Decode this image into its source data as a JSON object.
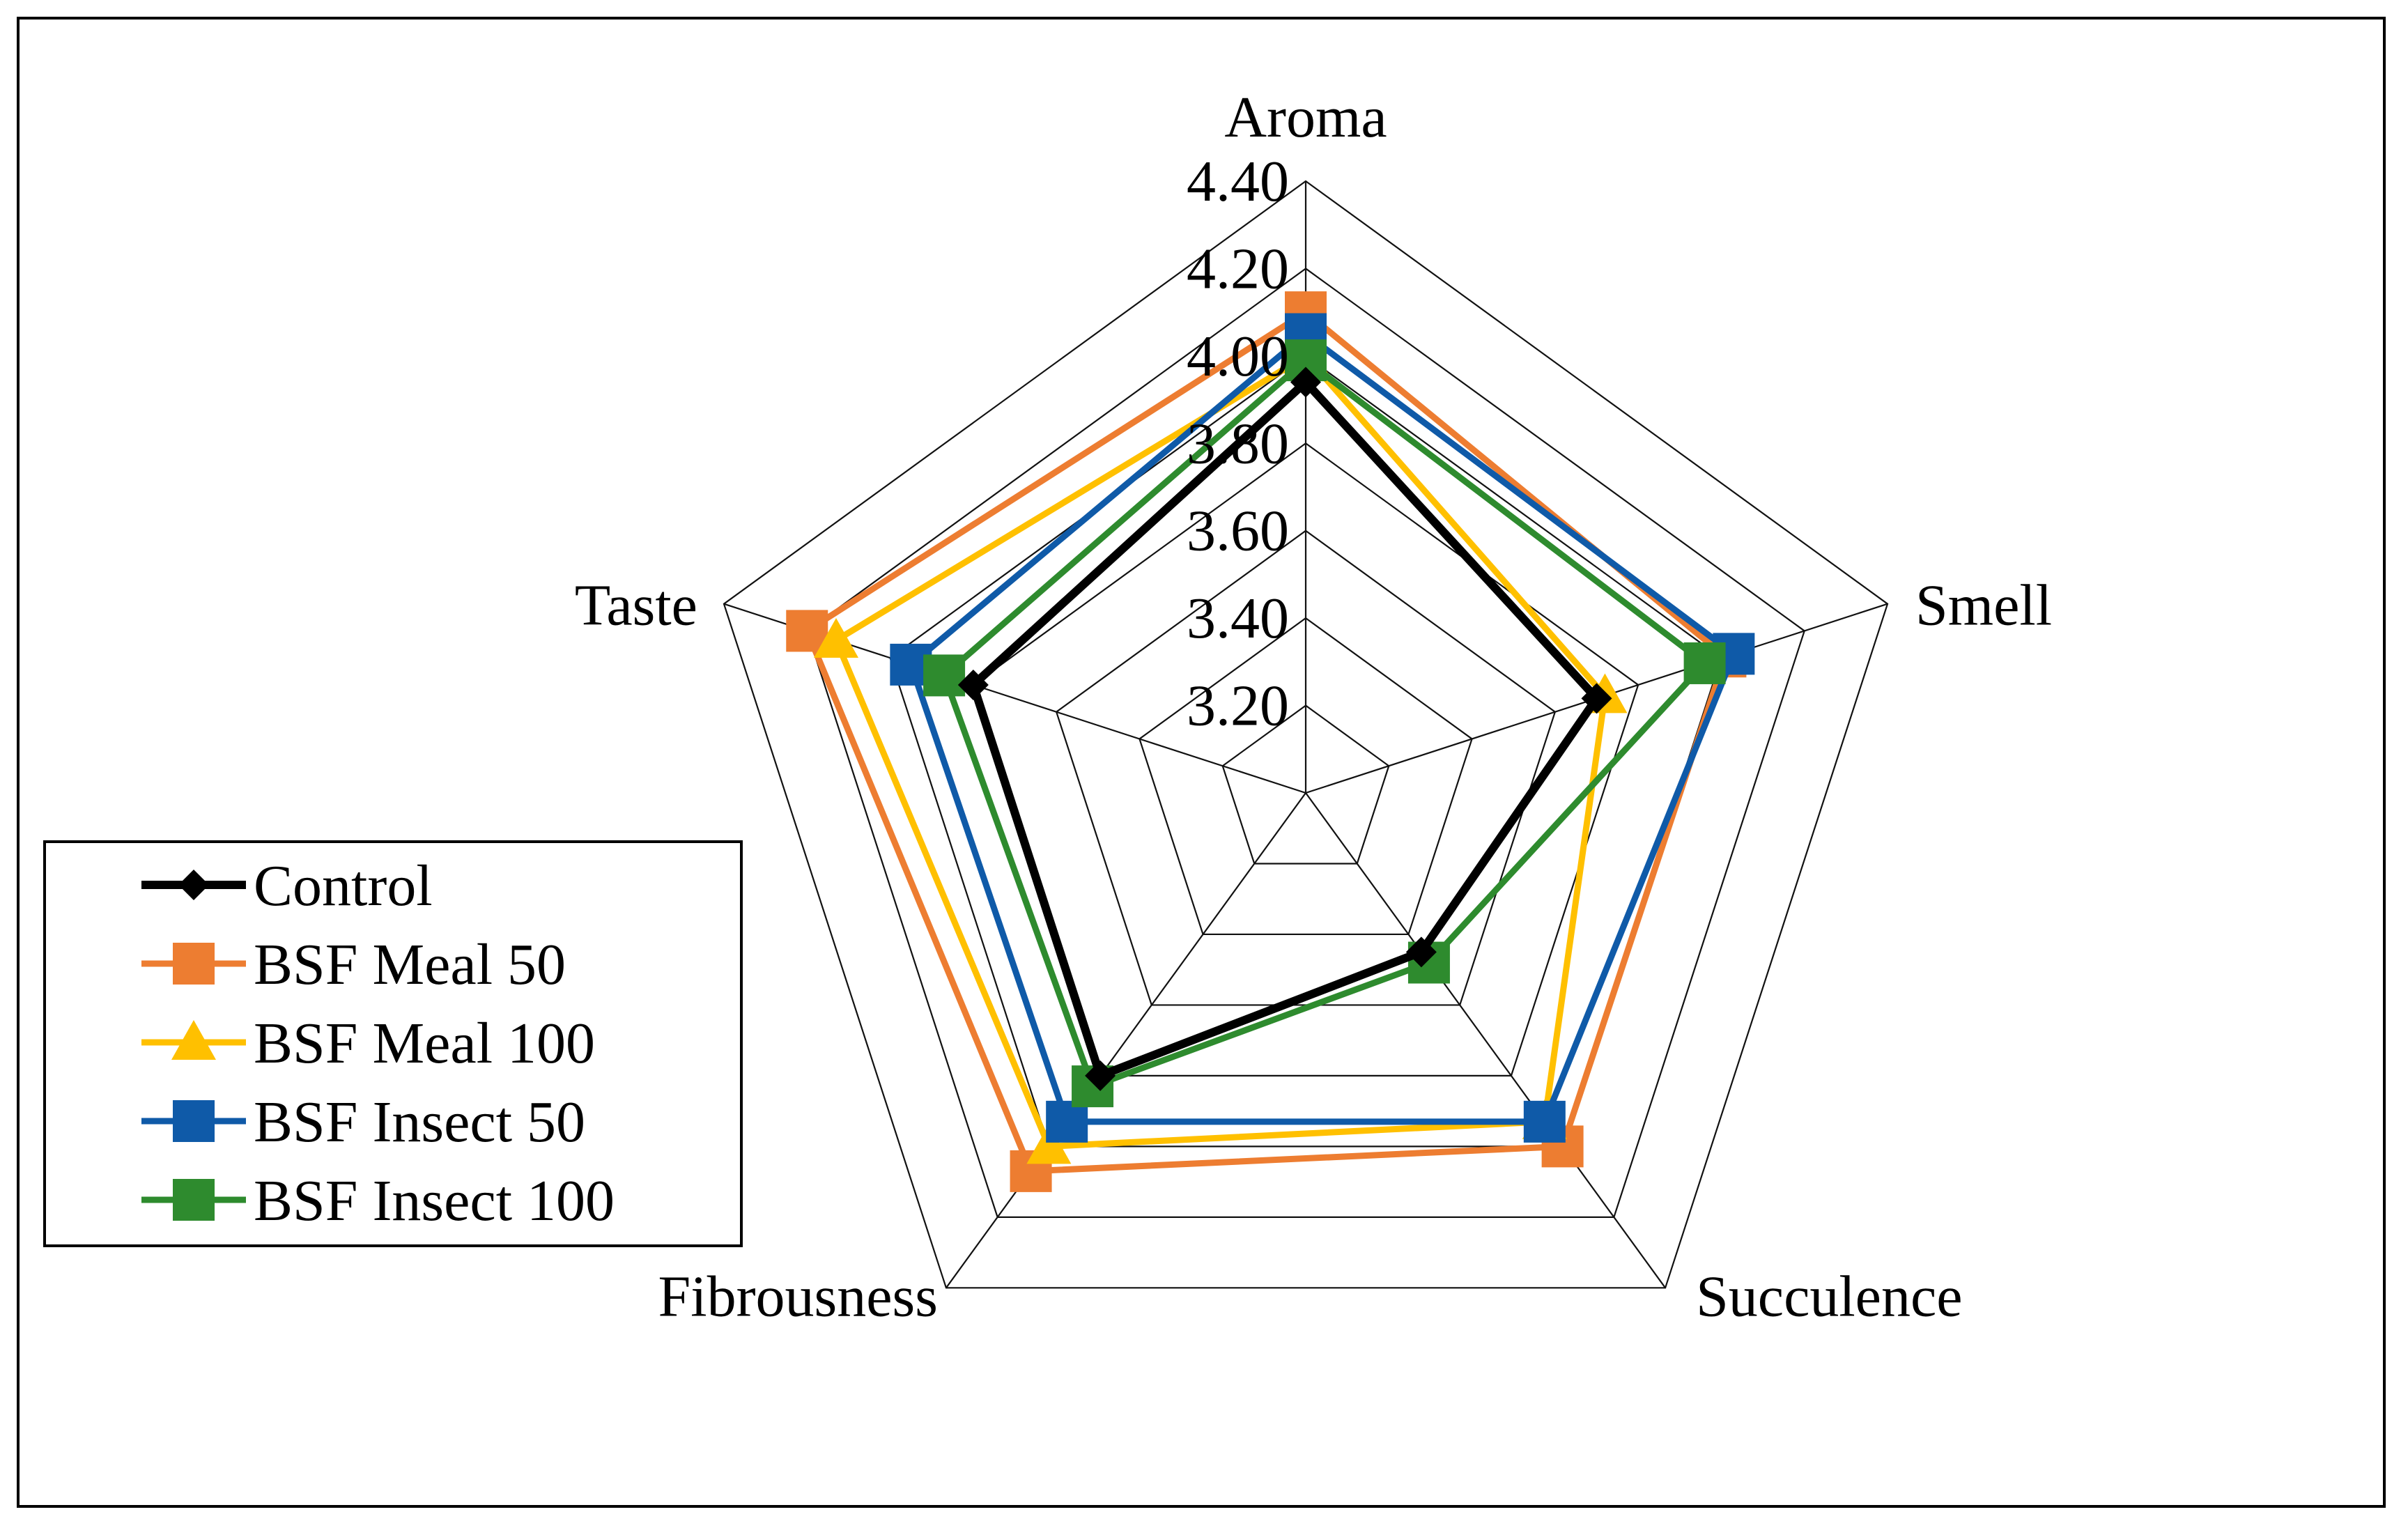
{
  "chart_data": {
    "type": "radar",
    "axes": [
      "Aroma",
      "Smell",
      "Succulence",
      "Fibrousness",
      "Taste"
    ],
    "scale": {
      "min": 3.0,
      "max": 4.4,
      "ticks": [
        3.2,
        3.4,
        3.6,
        3.8,
        4.0,
        4.2,
        4.4
      ],
      "tick_labels": [
        "3.20",
        "3.40",
        "3.60",
        "3.80",
        "4.00",
        "4.20",
        "4.40"
      ]
    },
    "grid": true,
    "legend_position": "bottom-left",
    "series": [
      {
        "name": "Control",
        "values": [
          3.94,
          3.7,
          3.45,
          3.8,
          3.8
        ],
        "color": "#000000",
        "marker": "diamond"
      },
      {
        "name": "BSF Meal 50",
        "values": [
          4.1,
          4.01,
          4.0,
          4.07,
          4.2
        ],
        "color": "#ED7D31",
        "marker": "square"
      },
      {
        "name": "BSF Meal 100",
        "values": [
          4.0,
          3.72,
          3.93,
          4.0,
          4.13
        ],
        "color": "#FFC000",
        "marker": "triangle"
      },
      {
        "name": "BSF Insect 50",
        "values": [
          4.05,
          4.03,
          3.93,
          3.93,
          3.95
        ],
        "color": "#0F5AA8",
        "marker": "square"
      },
      {
        "name": "BSF Insect 100",
        "values": [
          3.99,
          3.96,
          3.48,
          3.83,
          3.87
        ],
        "color": "#2E8B2E",
        "marker": "square"
      }
    ]
  }
}
